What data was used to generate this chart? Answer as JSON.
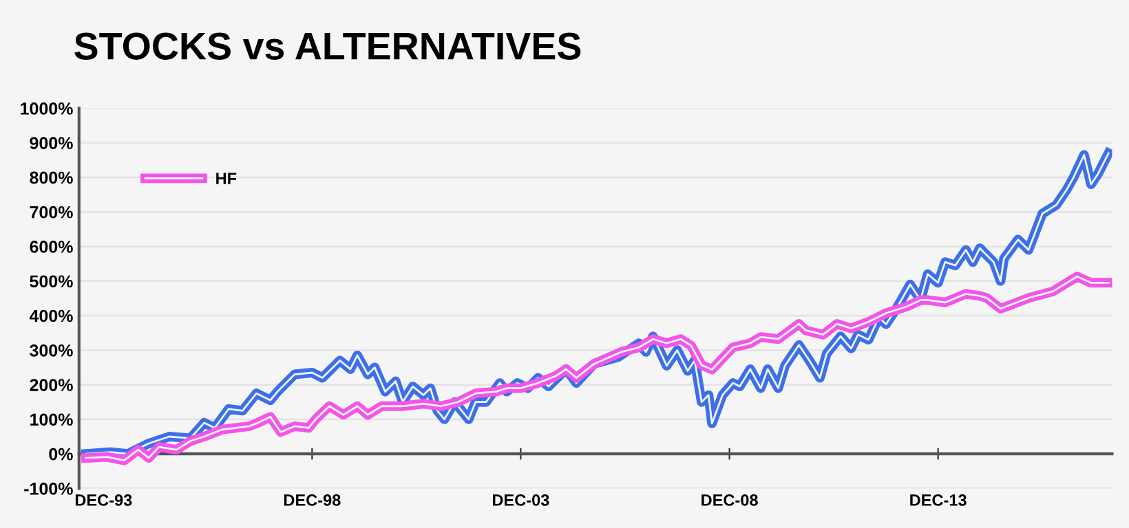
{
  "chart_data": {
    "type": "line",
    "title": "STOCKS vs ALTERNATIVES",
    "xlim": [
      "1993-05",
      "2018-02"
    ],
    "xticks": [
      {
        "value": "1993-12",
        "label": "DEC-93"
      },
      {
        "value": "1998-12",
        "label": "DEC-98"
      },
      {
        "value": "2003-12",
        "label": "DEC-03"
      },
      {
        "value": "2008-12",
        "label": "DEC-08"
      },
      {
        "value": "2013-12",
        "label": "DEC-13"
      }
    ],
    "ylim": [
      -100,
      1000
    ],
    "yticks": [
      {
        "value": -100,
        "label": "-100%"
      },
      {
        "value": 0,
        "label": "0%"
      },
      {
        "value": 100,
        "label": "100%"
      },
      {
        "value": 200,
        "label": "200%"
      },
      {
        "value": 300,
        "label": "300%"
      },
      {
        "value": 400,
        "label": "400%"
      },
      {
        "value": 500,
        "label": "500%"
      },
      {
        "value": 600,
        "label": "600%"
      },
      {
        "value": 700,
        "label": "700%"
      },
      {
        "value": 800,
        "label": "800%"
      },
      {
        "value": 900,
        "label": "900%"
      },
      {
        "value": 1000,
        "label": "1000%"
      }
    ],
    "grid": "y",
    "legend": "top left",
    "marker": "none",
    "line_style": "solid",
    "series": [
      {
        "color": "#3d6fe8",
        "x": [
          "1993-07",
          "1994-02",
          "1994-07",
          "1995-01",
          "1995-07",
          "1996-01",
          "1996-05",
          "1996-08",
          "1996-12",
          "1997-04",
          "1997-08",
          "1997-12",
          "1998-02",
          "1998-07",
          "1998-12",
          "1999-03",
          "1999-08",
          "1999-11",
          "2000-01",
          "2000-04",
          "2000-06",
          "2000-09",
          "2000-12",
          "2001-02",
          "2001-05",
          "2001-08",
          "2001-10",
          "2001-12",
          "2002-02",
          "2002-05",
          "2002-09",
          "2002-11",
          "2003-02",
          "2003-06",
          "2003-08",
          "2003-11",
          "2004-02",
          "2004-05",
          "2004-08",
          "2005-01",
          "2005-04",
          "2005-09",
          "2006-04",
          "2006-10",
          "2006-12",
          "2007-02",
          "2007-06",
          "2007-09",
          "2007-12",
          "2008-02",
          "2008-04",
          "2008-06",
          "2008-07",
          "2008-10",
          "2009-01",
          "2009-03",
          "2009-06",
          "2009-09",
          "2009-11",
          "2010-02",
          "2010-04",
          "2010-08",
          "2010-11",
          "2011-02",
          "2011-04",
          "2011-08",
          "2011-11",
          "2012-01",
          "2012-04",
          "2012-07",
          "2012-09",
          "2012-12",
          "2013-04",
          "2013-07",
          "2013-09",
          "2013-12",
          "2014-02",
          "2014-05",
          "2014-08",
          "2014-10",
          "2014-12",
          "2015-04",
          "2015-06",
          "2015-07",
          "2015-11",
          "2016-02",
          "2016-06",
          "2016-10",
          "2017-01",
          "2017-03",
          "2017-06",
          "2017-08",
          "2017-10",
          "2018-01"
        ],
        "values": [
          0,
          5,
          0,
          30,
          50,
          45,
          90,
          75,
          130,
          125,
          175,
          155,
          180,
          230,
          235,
          220,
          270,
          245,
          285,
          230,
          250,
          180,
          210,
          150,
          195,
          170,
          190,
          125,
          100,
          150,
          100,
          150,
          150,
          205,
          180,
          205,
          190,
          220,
          195,
          245,
          205,
          260,
          280,
          320,
          295,
          340,
          255,
          300,
          240,
          270,
          150,
          170,
          88,
          170,
          205,
          195,
          245,
          190,
          245,
          190,
          255,
          315,
          270,
          220,
          290,
          340,
          305,
          345,
          330,
          395,
          375,
          420,
          490,
          445,
          520,
          495,
          555,
          545,
          590,
          555,
          595,
          555,
          500,
          565,
          620,
          590,
          695,
          720,
          765,
          800,
          865,
          780,
          810,
          870
        ]
      },
      {
        "name": "HF",
        "color": "#f255e8",
        "x": [
          "1993-07",
          "1994-01",
          "1994-06",
          "1994-10",
          "1995-01",
          "1995-04",
          "1995-09",
          "1996-01",
          "1996-05",
          "1996-10",
          "1997-02",
          "1997-06",
          "1997-08",
          "1997-12",
          "1998-03",
          "1998-07",
          "1998-11",
          "1999-01",
          "1999-05",
          "1999-09",
          "2000-01",
          "2000-04",
          "2000-08",
          "2001-02",
          "2001-08",
          "2002-01",
          "2002-06",
          "2002-11",
          "2003-05",
          "2003-08",
          "2003-12",
          "2004-05",
          "2004-10",
          "2005-01",
          "2005-04",
          "2005-09",
          "2006-05",
          "2006-10",
          "2007-02",
          "2007-06",
          "2007-10",
          "2008-01",
          "2008-04",
          "2008-07",
          "2009-01",
          "2009-06",
          "2009-09",
          "2010-02",
          "2010-08",
          "2010-10",
          "2011-03",
          "2011-07",
          "2011-11",
          "2012-04",
          "2012-09",
          "2013-03",
          "2013-07",
          "2013-09",
          "2014-02",
          "2014-08",
          "2014-12",
          "2015-02",
          "2015-06",
          "2016-02",
          "2016-09",
          "2017-04",
          "2017-08",
          "2018-01"
        ],
        "values": [
          -12,
          -9,
          -19,
          12,
          -12,
          20,
          12,
          37,
          50,
          70,
          75,
          80,
          88,
          107,
          63,
          80,
          75,
          100,
          138,
          113,
          138,
          113,
          138,
          138,
          145,
          138,
          150,
          175,
          180,
          190,
          190,
          205,
          225,
          245,
          220,
          260,
          295,
          308,
          332,
          320,
          332,
          313,
          257,
          244,
          308,
          320,
          338,
          332,
          376,
          357,
          345,
          376,
          363,
          382,
          407,
          426,
          445,
          445,
          438,
          463,
          457,
          451,
          420,
          451,
          470,
          513,
          495,
          495
        ]
      }
    ]
  }
}
